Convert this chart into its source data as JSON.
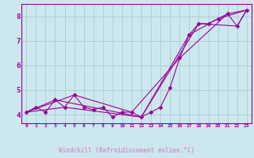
{
  "xlabel": "Windchill (Refroidissement éolien,°C)",
  "background_color": "#cce8ee",
  "plot_bg_color": "#cce8ee",
  "line_color": "#990099",
  "grid_color": "#aacccc",
  "bottom_bar_color": "#330033",
  "xlabel_color": "#cc99cc",
  "xlim": [
    -0.5,
    23.5
  ],
  "ylim": [
    3.65,
    8.5
  ],
  "xticks": [
    0,
    1,
    2,
    3,
    4,
    5,
    6,
    7,
    8,
    9,
    10,
    11,
    12,
    13,
    14,
    15,
    16,
    17,
    18,
    19,
    20,
    21,
    22,
    23
  ],
  "yticks": [
    4,
    5,
    6,
    7,
    8
  ],
  "series1_x": [
    0,
    1,
    2,
    3,
    4,
    5,
    6,
    7,
    8,
    9,
    10,
    11,
    12,
    13,
    14,
    15,
    16,
    17,
    18,
    19,
    20,
    21,
    22,
    23
  ],
  "series1_y": [
    4.1,
    4.3,
    4.1,
    4.6,
    4.3,
    4.8,
    4.3,
    4.2,
    4.3,
    3.9,
    4.1,
    4.1,
    3.9,
    4.1,
    4.3,
    5.1,
    6.3,
    7.25,
    7.7,
    7.7,
    7.9,
    8.1,
    7.6,
    8.25
  ],
  "series2_x": [
    0,
    5,
    11,
    16,
    21,
    23
  ],
  "series2_y": [
    4.1,
    4.8,
    4.1,
    6.3,
    8.1,
    8.25
  ],
  "series3_x": [
    0,
    4,
    12,
    17,
    20,
    23
  ],
  "series3_y": [
    4.1,
    4.3,
    3.9,
    7.25,
    7.9,
    8.25
  ],
  "series4_x": [
    0,
    3,
    12,
    18,
    22,
    23
  ],
  "series4_y": [
    4.1,
    4.6,
    3.9,
    7.7,
    7.6,
    8.25
  ]
}
